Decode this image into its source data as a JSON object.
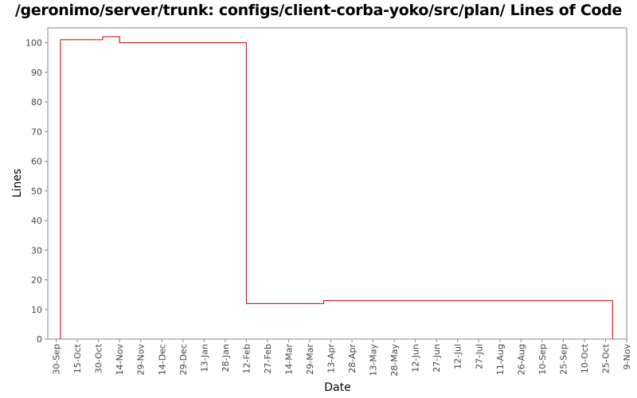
{
  "chart_data": {
    "type": "line",
    "step": true,
    "title": "/geronimo/server/trunk: configs/client-corba-yoko/src/plan/ Lines of Code",
    "xlabel": "Date",
    "ylabel": "Lines",
    "ylim": [
      0,
      105
    ],
    "yticks": [
      0,
      10,
      20,
      30,
      40,
      50,
      60,
      70,
      80,
      90,
      100
    ],
    "xlim": [
      "2006-09-24",
      "2007-11-09"
    ],
    "xtick_dates": [
      "2006-09-30",
      "2006-10-15",
      "2006-10-30",
      "2006-11-14",
      "2006-11-29",
      "2006-12-14",
      "2006-12-29",
      "2007-01-13",
      "2007-01-28",
      "2007-02-12",
      "2007-02-27",
      "2007-03-14",
      "2007-03-29",
      "2007-04-13",
      "2007-04-28",
      "2007-05-13",
      "2007-05-28",
      "2007-06-12",
      "2007-06-27",
      "2007-07-12",
      "2007-07-27",
      "2007-08-11",
      "2007-08-26",
      "2007-09-10",
      "2007-09-25",
      "2007-10-10",
      "2007-10-25",
      "2007-11-09"
    ],
    "xtick_labels": [
      "30-Sep",
      "15-Oct",
      "30-Oct",
      "14-Nov",
      "29-Nov",
      "14-Dec",
      "29-Dec",
      "13-Jan",
      "28-Jan",
      "12-Feb",
      "27-Feb",
      "14-Mar",
      "29-Mar",
      "13-Apr",
      "28-Apr",
      "13-May",
      "28-May",
      "12-Jun",
      "27-Jun",
      "12-Jul",
      "27-Jul",
      "11-Aug",
      "26-Aug",
      "10-Sep",
      "25-Sep",
      "10-Oct",
      "25-Oct",
      "9-Nov"
    ],
    "series": [
      {
        "color": "#cc0000",
        "points": [
          {
            "x": "2006-10-03",
            "y": 0
          },
          {
            "x": "2006-10-03",
            "y": 101
          },
          {
            "x": "2006-11-02",
            "y": 102
          },
          {
            "x": "2006-11-14",
            "y": 100
          },
          {
            "x": "2007-02-12",
            "y": 12
          },
          {
            "x": "2007-04-08",
            "y": 13
          },
          {
            "x": "2007-10-30",
            "y": 13
          },
          {
            "x": "2007-10-30",
            "y": 0
          }
        ]
      }
    ],
    "grid": false
  }
}
